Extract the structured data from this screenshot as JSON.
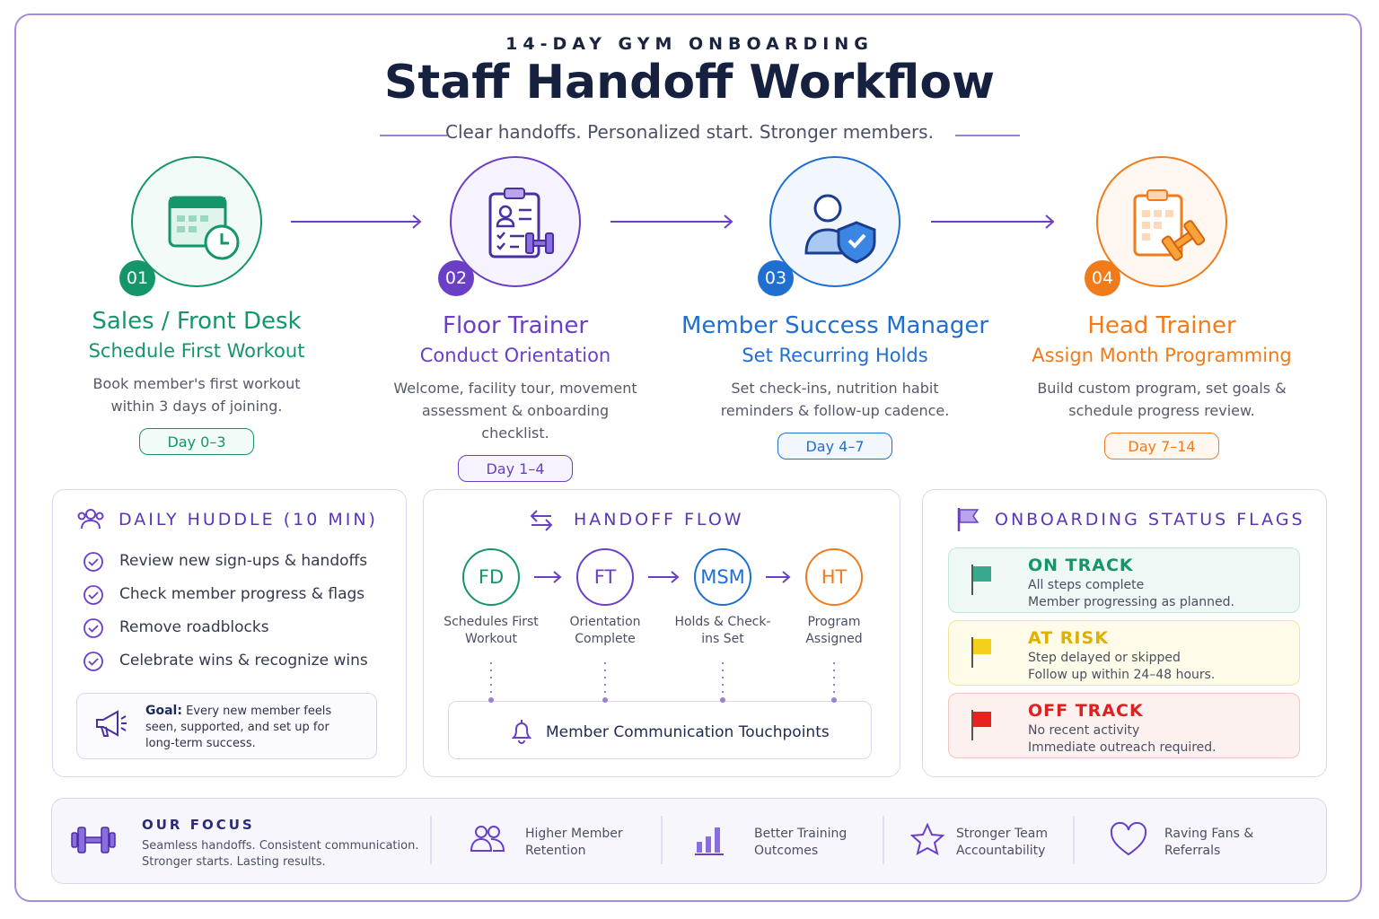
{
  "header": {
    "eyebrow": "14-DAY GYM ONBOARDING",
    "title": "Staff Handoff Workflow",
    "subtitle": "Clear handoffs. Personalized start. Stronger members."
  },
  "steps": [
    {
      "number": "01",
      "role": "Sales / Front Desk",
      "task": "Schedule First Workout",
      "description": "Book member's first workout within 3 days of joining.",
      "days": "Day 0–3"
    },
    {
      "number": "02",
      "role": "Floor Trainer",
      "task": "Conduct Orientation",
      "description": "Welcome, facility tour, movement assessment & onboarding checklist.",
      "days": "Day 1–4"
    },
    {
      "number": "03",
      "role": "Member Success Manager",
      "task": "Set Recurring Holds",
      "description": "Set check-ins, nutrition habit reminders & follow-up cadence.",
      "days": "Day 4–7"
    },
    {
      "number": "04",
      "role": "Head Trainer",
      "task": "Assign Month Programming",
      "description": "Build custom program, set goals & schedule progress review.",
      "days": "Day 7–14"
    }
  ],
  "huddle": {
    "title": "DAILY HUDDLE (10 MIN)",
    "items": [
      "Review new sign-ups & handoffs",
      "Check member progress & flags",
      "Remove roadblocks",
      "Celebrate wins & recognize wins"
    ],
    "goal_label": "Goal:",
    "goal_text": "Every new member feels seen, supported, and set up for long-term success."
  },
  "handoff_flow": {
    "title": "HANDOFF FLOW",
    "nodes": [
      {
        "label": "FD",
        "caption": "Schedules First Workout"
      },
      {
        "label": "FT",
        "caption": "Orientation Complete"
      },
      {
        "label": "MSM",
        "caption": "Holds & Check-ins Set"
      },
      {
        "label": "HT",
        "caption": "Program Assigned"
      }
    ],
    "touchpoints": "Member Communication Touchpoints"
  },
  "status_flags": {
    "title": "ONBOARDING STATUS FLAGS",
    "flags": [
      {
        "label": "ON TRACK",
        "line1": "All steps complete",
        "line2": "Member progressing as planned."
      },
      {
        "label": "AT RISK",
        "line1": "Step delayed or skipped",
        "line2": "Follow up within 24–48 hours."
      },
      {
        "label": "OFF TRACK",
        "line1": "No recent activity",
        "line2": "Immediate outreach required."
      }
    ]
  },
  "focus": {
    "title": "OUR FOCUS",
    "line1": "Seamless handoffs. Consistent communication.",
    "line2": "Stronger starts. Lasting results.",
    "items": [
      "Higher Member Retention",
      "Better Training Outcomes",
      "Stronger Team Accountability",
      "Raving Fans & Referrals"
    ]
  }
}
